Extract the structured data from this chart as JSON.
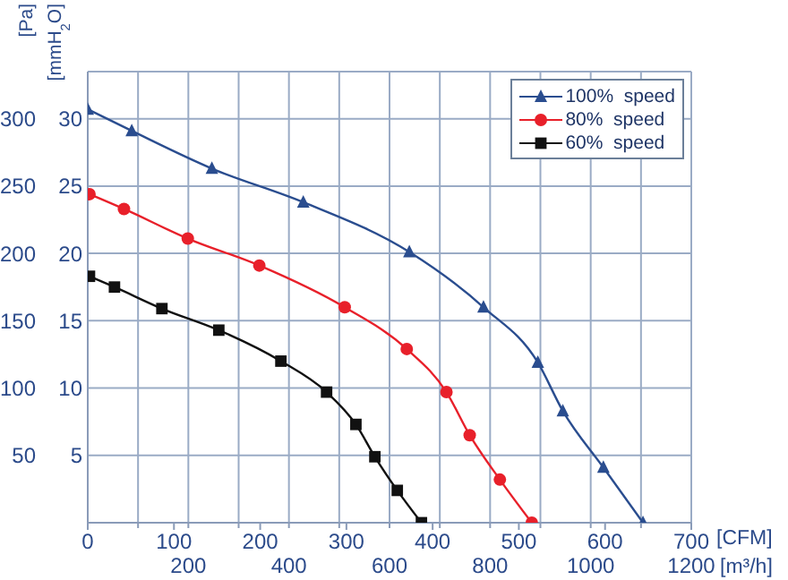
{
  "chart_data": {
    "type": "line",
    "xlabel": "[CFM]",
    "x2label": "[m³/h]",
    "ylabel": "[Pa]",
    "y2label": "[mmH$_{2}$O]",
    "xlim": [
      0,
      700
    ],
    "xticks": [
      0,
      100,
      200,
      300,
      400,
      500,
      600,
      700
    ],
    "x2lim": [
      0,
      1200
    ],
    "x2ticks": [
      {
        "value": 100,
        "label": null
      },
      200,
      {
        "value": 300,
        "label": null
      },
      400,
      {
        "value": 500,
        "label": null
      },
      600,
      {
        "value": 700,
        "label": null
      },
      800,
      {
        "value": 900,
        "label": null
      },
      1000,
      {
        "value": 1100,
        "label": null
      },
      1200
    ],
    "ylim": [
      0,
      335
    ],
    "yticks": [
      50,
      100,
      150,
      200,
      250,
      300
    ],
    "y2lim": [
      0,
      33.5
    ],
    "y2ticks": [
      5,
      10,
      15,
      20,
      25,
      30
    ],
    "grid": true,
    "legend": "top right",
    "line_style": "solid",
    "series": [
      {
        "name": "100%  speed",
        "color": "#2a4d8f",
        "marker": "triangle",
        "x": [
          0,
          51,
          144,
          250,
          373,
          459,
          522,
          551,
          598,
          644
        ],
        "values": [
          307,
          291,
          263,
          238,
          201,
          160,
          119,
          83,
          41,
          0
        ]
      },
      {
        "name": "80%  speed",
        "color": "#e8202a",
        "marker": "circle",
        "x": [
          2,
          42,
          116,
          199,
          298,
          370,
          416,
          443,
          478,
          515
        ],
        "values": [
          244,
          233,
          211,
          191,
          160,
          129,
          97,
          65,
          32,
          0
        ]
      },
      {
        "name": "60%  speed",
        "color": "#111111",
        "marker": "square",
        "x": [
          2,
          31,
          86,
          152,
          224,
          277,
          311,
          333,
          359,
          387
        ],
        "values": [
          183,
          175,
          159,
          143,
          120,
          97,
          73,
          49,
          24,
          0
        ]
      }
    ]
  }
}
